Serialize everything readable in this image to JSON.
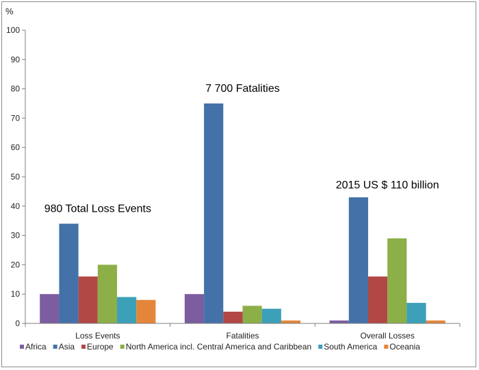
{
  "chart_data": {
    "type": "bar",
    "ylabel": "%",
    "ylim": [
      0,
      100
    ],
    "yticks": [
      0,
      10,
      20,
      30,
      40,
      50,
      60,
      70,
      80,
      90,
      100
    ],
    "grid": false,
    "legend_position": "bottom",
    "categories": [
      "Loss Events",
      "Fatalities",
      "Overall Losses"
    ],
    "series": [
      {
        "name": "Africa",
        "color": "#7b5da0",
        "values": [
          10,
          10,
          1
        ]
      },
      {
        "name": "Asia",
        "color": "#4472a8",
        "values": [
          34,
          75,
          43
        ]
      },
      {
        "name": "Europe",
        "color": "#b24846",
        "values": [
          16,
          4,
          16
        ]
      },
      {
        "name": "North America incl. Central America and Caribbean",
        "color": "#8caf48",
        "values": [
          20,
          6,
          29
        ]
      },
      {
        "name": "South America",
        "color": "#3ba0b8",
        "values": [
          9,
          5,
          7
        ]
      },
      {
        "name": "Oceania",
        "color": "#e3863a",
        "values": [
          8,
          1,
          1
        ]
      }
    ],
    "annotations": [
      {
        "text": "980 Total Loss Events",
        "category": "Loss Events",
        "value": 38
      },
      {
        "text": "7 700 Fatalities",
        "category": "Fatalities",
        "value": 79
      },
      {
        "text": "2015 US $ 110 billion",
        "category": "Overall Losses",
        "value": 46
      }
    ]
  }
}
